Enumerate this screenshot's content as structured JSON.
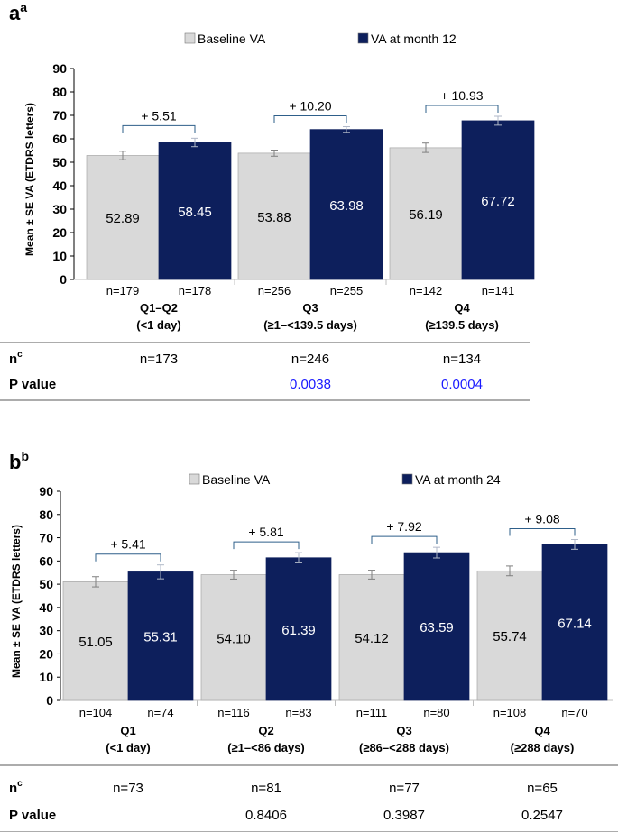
{
  "chart_data": [
    {
      "type": "bar",
      "panel_letter": "a",
      "panel_superscript": "a",
      "ylabel": "Mean ± SE VA (ETDRS letters)",
      "ylim": [
        0,
        90
      ],
      "yticks": [
        0,
        10,
        20,
        30,
        40,
        50,
        60,
        70,
        80,
        90
      ],
      "legend_position": "top",
      "series": [
        {
          "name": "Baseline VA",
          "color": "#d9d9d9",
          "values": [
            52.89,
            53.88,
            56.19
          ],
          "value_labels": [
            "52.89",
            "53.88",
            "56.19"
          ],
          "se": [
            1.8,
            1.3,
            2.0
          ],
          "n_labels": [
            "n=179",
            "n=256",
            "n=142"
          ]
        },
        {
          "name": "VA at month 12",
          "color": "#0d1f5c",
          "values": [
            58.45,
            63.98,
            67.72
          ],
          "value_labels": [
            "58.45",
            "63.98",
            "67.72"
          ],
          "se": [
            1.8,
            1.2,
            1.9
          ],
          "n_labels": [
            "n=178",
            "n=255",
            "n=141"
          ]
        }
      ],
      "groups": [
        {
          "name": "Q1–Q2",
          "sub": "(<1 day)"
        },
        {
          "name": "Q3",
          "sub": "(≥1–<139.5 days)"
        },
        {
          "name": "Q4",
          "sub": "(≥139.5 days)"
        }
      ],
      "differences": [
        "+ 5.51",
        "+ 10.20",
        "+ 10.93"
      ],
      "table": {
        "n_label": "n",
        "n_superscript": "c",
        "n_values": [
          "n=173",
          "n=246",
          "n=134"
        ],
        "p_label": "P value",
        "p_values": [
          "",
          "0.0038",
          "0.0004"
        ],
        "p_color": "#1a1aff"
      }
    },
    {
      "type": "bar",
      "panel_letter": "b",
      "panel_superscript": "b",
      "ylabel": "Mean ± SE VA (ETDRS letters)",
      "ylim": [
        0,
        90
      ],
      "yticks": [
        0,
        10,
        20,
        30,
        40,
        50,
        60,
        70,
        80,
        90
      ],
      "legend_position": "top",
      "series": [
        {
          "name": "Baseline VA",
          "color": "#d9d9d9",
          "values": [
            51.05,
            54.1,
            54.12,
            55.74
          ],
          "value_labels": [
            "51.05",
            "54.10",
            "54.12",
            "55.74"
          ],
          "se": [
            2.2,
            1.9,
            1.9,
            2.1
          ],
          "n_labels": [
            "n=104",
            "n=116",
            "n=111",
            "n=108"
          ]
        },
        {
          "name": "VA at month 24",
          "color": "#0d1f5c",
          "values": [
            55.31,
            61.39,
            63.59,
            67.14
          ],
          "value_labels": [
            "55.31",
            "61.39",
            "63.59",
            "67.14"
          ],
          "se": [
            3.0,
            2.2,
            2.3,
            2.1
          ],
          "n_labels": [
            "n=74",
            "n=83",
            "n=80",
            "n=70"
          ]
        }
      ],
      "groups": [
        {
          "name": "Q1",
          "sub": "(<1 day)"
        },
        {
          "name": "Q2",
          "sub": "(≥1–<86 days)"
        },
        {
          "name": "Q3",
          "sub": "(≥86–<288 days)"
        },
        {
          "name": "Q4",
          "sub": "(≥288 days)"
        }
      ],
      "differences": [
        "+ 5.41",
        "+ 5.81",
        "+ 7.92",
        "+ 9.08"
      ],
      "table": {
        "n_label": "n",
        "n_superscript": "c",
        "n_values": [
          "n=73",
          "n=81",
          "n=77",
          "n=65"
        ],
        "p_label": "P value",
        "p_values": [
          "",
          "0.8406",
          "0.3987",
          "0.2547"
        ],
        "p_color": "#000000"
      }
    }
  ]
}
